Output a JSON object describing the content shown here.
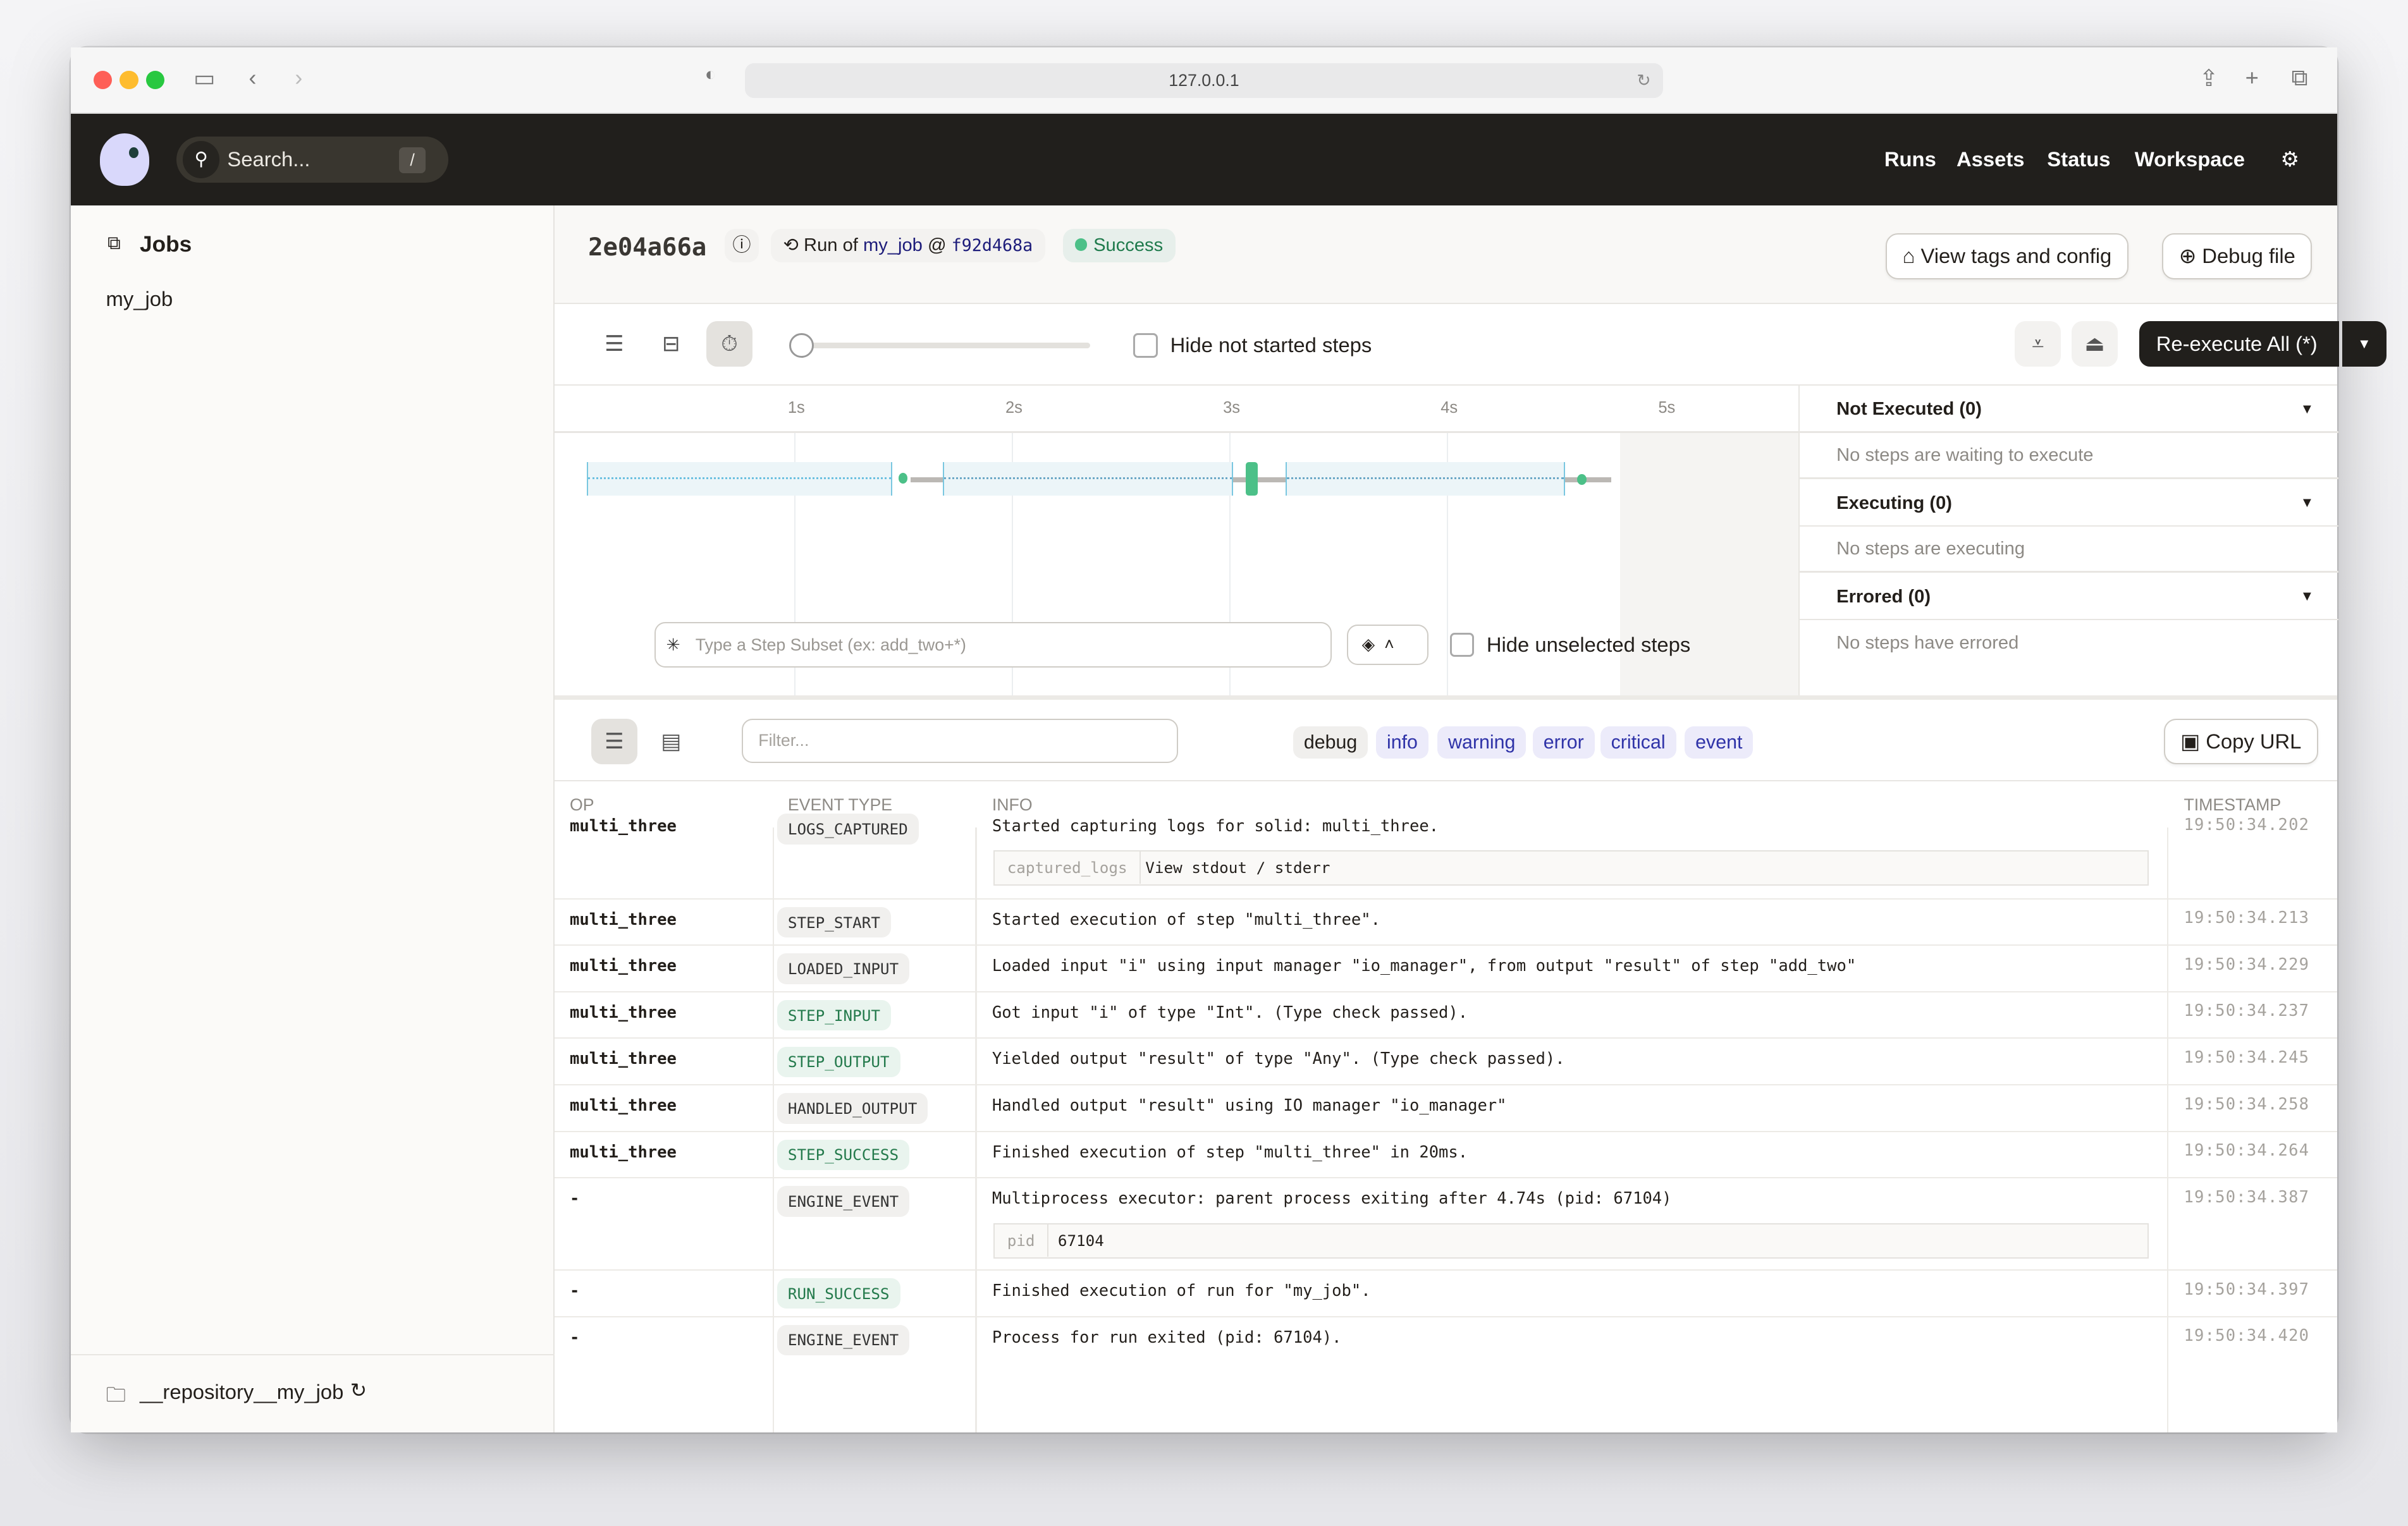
{
  "browser": {
    "url": "127.0.0.1"
  },
  "nav": {
    "search_placeholder": "Search...",
    "search_shortcut": "/",
    "links": [
      "Runs",
      "Assets",
      "Status",
      "Workspace"
    ]
  },
  "sidebar": {
    "heading": "Jobs",
    "items": [
      "my_job"
    ],
    "repository": "__repository__my_job"
  },
  "header": {
    "run_id": "2e04a66a",
    "run_of_prefix": "Run of",
    "job": "my_job",
    "at": "@",
    "snapshot": "f92d468a",
    "status": "Success",
    "status_color": "#4cc088",
    "view_tags": "View tags and config",
    "debug_file": "Debug file"
  },
  "toolbar": {
    "hide_not_started": "Hide not started steps",
    "reexecute": "Re-execute All (*)"
  },
  "timeline": {
    "ticks": [
      "1s",
      "2s",
      "3s",
      "4s",
      "5s"
    ],
    "step_subset_placeholder": "Type a Step Subset (ex: add_two+*)",
    "hide_unselected": "Hide unselected steps"
  },
  "right_panel": [
    {
      "title": "Not Executed (0)",
      "empty": "No steps are waiting to execute"
    },
    {
      "title": "Executing (0)",
      "empty": "No steps are executing"
    },
    {
      "title": "Errored (0)",
      "empty": "No steps have errored"
    }
  ],
  "logs": {
    "filter_placeholder": "Filter...",
    "levels": [
      "debug",
      "info",
      "warning",
      "error",
      "critical",
      "event"
    ],
    "copy_url": "Copy URL",
    "columns": [
      "OP",
      "EVENT TYPE",
      "INFO",
      "TIMESTAMP"
    ],
    "rows": [
      {
        "op": "multi_three",
        "type": "LOGS_CAPTURED",
        "info": "Started capturing logs for solid: multi_three.",
        "ts": "19:50:34.202",
        "kv": [
          "captured_logs",
          "View stdout / stderr"
        ],
        "green": false
      },
      {
        "op": "multi_three",
        "type": "STEP_START",
        "info": "Started execution of step \"multi_three\".",
        "ts": "19:50:34.213",
        "green": false
      },
      {
        "op": "multi_three",
        "type": "LOADED_INPUT",
        "info": "Loaded input \"i\" using input manager \"io_manager\", from output \"result\" of step \"add_two\"",
        "ts": "19:50:34.229",
        "green": false
      },
      {
        "op": "multi_three",
        "type": "STEP_INPUT",
        "info": "Got input \"i\" of type \"Int\". (Type check passed).",
        "ts": "19:50:34.237",
        "green": true
      },
      {
        "op": "multi_three",
        "type": "STEP_OUTPUT",
        "info": "Yielded output \"result\" of type \"Any\". (Type check passed).",
        "ts": "19:50:34.245",
        "green": true
      },
      {
        "op": "multi_three",
        "type": "HANDLED_OUTPUT",
        "info": "Handled output \"result\" using IO manager \"io_manager\"",
        "ts": "19:50:34.258",
        "green": false
      },
      {
        "op": "multi_three",
        "type": "STEP_SUCCESS",
        "info": "Finished execution of step \"multi_three\" in 20ms.",
        "ts": "19:50:34.264",
        "green": true
      },
      {
        "op": "-",
        "type": "ENGINE_EVENT",
        "info": "Multiprocess executor: parent process exiting after 4.74s (pid: 67104)",
        "ts": "19:50:34.387",
        "kv": [
          "pid",
          "67104"
        ],
        "green": false
      },
      {
        "op": "-",
        "type": "RUN_SUCCESS",
        "info": "Finished execution of run for \"my_job\".",
        "ts": "19:50:34.397",
        "green": true
      },
      {
        "op": "-",
        "type": "ENGINE_EVENT",
        "info": "Process for run exited (pid: 67104).",
        "ts": "19:50:34.420",
        "green": false
      }
    ]
  }
}
